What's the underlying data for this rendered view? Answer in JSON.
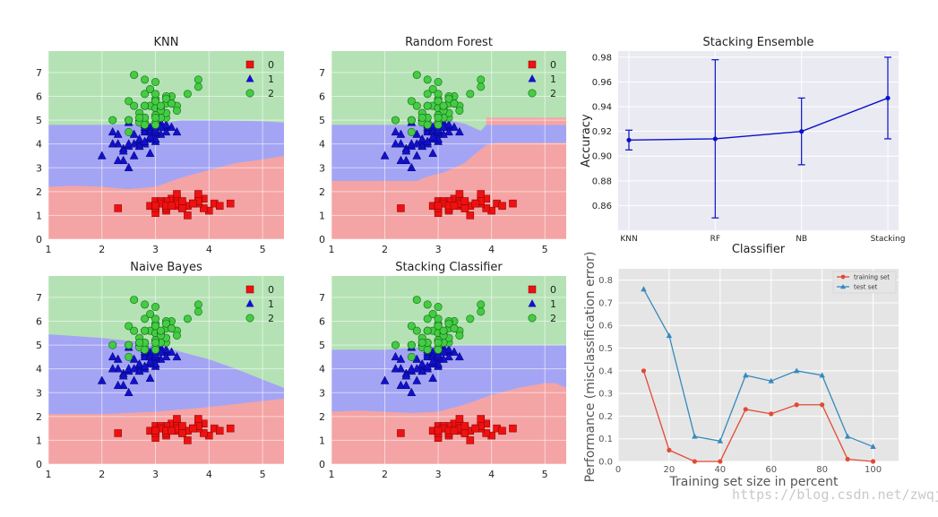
{
  "watermark": "https://blog.csdn.net/zwqjoy",
  "chart_data": [
    {
      "type": "scatter",
      "subtype": "decision-region",
      "title": "KNN",
      "xlim": [
        1,
        5.4
      ],
      "ylim": [
        0,
        7.9
      ],
      "xticks": [
        1,
        2,
        3,
        4,
        5
      ],
      "yticks": [
        0,
        1,
        2,
        3,
        4,
        5,
        6,
        7
      ],
      "boundaries": {
        "lower": [
          [
            1,
            2.2
          ],
          [
            1.5,
            2.25
          ],
          [
            2,
            2.2
          ],
          [
            2.5,
            2.1
          ],
          [
            3,
            2.2
          ],
          [
            3.5,
            2.6
          ],
          [
            4,
            2.9
          ],
          [
            4.5,
            3.2
          ],
          [
            5,
            3.35
          ],
          [
            5.4,
            3.5
          ]
        ],
        "upper": [
          [
            1,
            4.8
          ],
          [
            2,
            4.8
          ],
          [
            3,
            4.85
          ],
          [
            3.5,
            5.0
          ],
          [
            4,
            5.0
          ],
          [
            5,
            4.95
          ],
          [
            5.4,
            4.9
          ]
        ]
      },
      "legend": [
        "0",
        "1",
        "2"
      ],
      "legend_position": "top-right"
    },
    {
      "type": "scatter",
      "subtype": "decision-region",
      "title": "Random Forest",
      "xlim": [
        1,
        5.4
      ],
      "ylim": [
        0,
        7.9
      ],
      "xticks": [
        1,
        2,
        3,
        4,
        5
      ],
      "yticks": [
        0,
        1,
        2,
        3,
        4,
        5,
        6,
        7
      ],
      "boundaries": {
        "lower": [
          [
            1,
            2.45
          ],
          [
            2.6,
            2.45
          ],
          [
            2.7,
            2.55
          ],
          [
            2.9,
            2.7
          ],
          [
            3.1,
            2.8
          ],
          [
            3.3,
            3.0
          ],
          [
            3.5,
            3.2
          ],
          [
            3.7,
            3.6
          ],
          [
            3.9,
            3.95
          ],
          [
            4.1,
            4.05
          ],
          [
            5.4,
            4.05
          ]
        ],
        "upper": [
          [
            1,
            4.8
          ],
          [
            2.6,
            4.8
          ],
          [
            2.8,
            4.9
          ],
          [
            3.2,
            5.0
          ],
          [
            3.5,
            4.85
          ],
          [
            3.8,
            4.55
          ],
          [
            3.9,
            4.8
          ],
          [
            5.4,
            4.8
          ]
        ]
      },
      "notch": {
        "x0": 3.9,
        "x1": 5.4,
        "y0": 4.8,
        "y1": 5.1
      },
      "legend": [
        "0",
        "1",
        "2"
      ],
      "legend_position": "top-right"
    },
    {
      "type": "line",
      "title": "Stacking Ensemble",
      "xlabel": "Classifier",
      "ylabel": "Accuracy",
      "categories": [
        "KNN",
        "RF",
        "NB",
        "Stacking"
      ],
      "values": [
        0.913,
        0.914,
        0.92,
        0.947
      ],
      "errors": [
        0.008,
        0.064,
        0.027,
        0.033
      ],
      "ylim": [
        0.84,
        0.985
      ],
      "yticks": [
        0.86,
        0.88,
        0.9,
        0.92,
        0.94,
        0.96,
        0.98
      ],
      "color": "#0a10c8"
    },
    {
      "type": "scatter",
      "subtype": "decision-region",
      "title": "Naive Bayes",
      "xlim": [
        1,
        5.4
      ],
      "ylim": [
        0,
        7.9
      ],
      "xticks": [
        1,
        2,
        3,
        4,
        5
      ],
      "yticks": [
        0,
        1,
        2,
        3,
        4,
        5,
        6,
        7
      ],
      "boundaries": {
        "lower": [
          [
            1,
            2.1
          ],
          [
            2,
            2.1
          ],
          [
            3,
            2.2
          ],
          [
            4,
            2.4
          ],
          [
            5,
            2.65
          ],
          [
            5.4,
            2.75
          ]
        ],
        "upper": [
          [
            1,
            5.45
          ],
          [
            2,
            5.3
          ],
          [
            3,
            5.05
          ],
          [
            3.5,
            4.7
          ],
          [
            4,
            4.4
          ],
          [
            4.5,
            4.0
          ],
          [
            5,
            3.55
          ],
          [
            5.4,
            3.2
          ]
        ]
      },
      "legend": [
        "0",
        "1",
        "2"
      ],
      "legend_position": "top-right"
    },
    {
      "type": "scatter",
      "subtype": "decision-region",
      "title": "Stacking Classifier",
      "xlim": [
        1,
        5.4
      ],
      "ylim": [
        0,
        7.9
      ],
      "xticks": [
        1,
        2,
        3,
        4,
        5
      ],
      "yticks": [
        0,
        1,
        2,
        3,
        4,
        5,
        6,
        7
      ],
      "boundaries": {
        "lower": [
          [
            1,
            2.2
          ],
          [
            1.5,
            2.25
          ],
          [
            2,
            2.2
          ],
          [
            2.5,
            2.15
          ],
          [
            3,
            2.2
          ],
          [
            3.5,
            2.5
          ],
          [
            4,
            2.9
          ],
          [
            4.5,
            3.2
          ],
          [
            5,
            3.4
          ],
          [
            5.2,
            3.4
          ],
          [
            5.4,
            3.2
          ]
        ],
        "upper": [
          [
            1,
            4.8
          ],
          [
            2,
            4.8
          ],
          [
            3,
            4.95
          ],
          [
            3.5,
            5.0
          ],
          [
            4,
            5.0
          ],
          [
            5,
            5.0
          ],
          [
            5.4,
            5.0
          ]
        ]
      },
      "legend": [
        "0",
        "1",
        "2"
      ],
      "legend_position": "top-right"
    },
    {
      "type": "line",
      "xlabel": "Training set size in percent",
      "ylabel": "Performance (misclassification error)",
      "x": [
        10,
        20,
        30,
        40,
        50,
        60,
        70,
        80,
        90,
        100
      ],
      "series": [
        {
          "name": "training set",
          "values": [
            0.4,
            0.05,
            0.0,
            0.0,
            0.23,
            0.21,
            0.25,
            0.25,
            0.01,
            0.0
          ],
          "color": "#e24a33",
          "marker": "circle"
        },
        {
          "name": "test set",
          "values": [
            0.76,
            0.555,
            0.11,
            0.09,
            0.38,
            0.355,
            0.4,
            0.38,
            0.11,
            0.065
          ],
          "color": "#348abd",
          "marker": "triangle"
        }
      ],
      "xlim": [
        0,
        110
      ],
      "ylim": [
        0,
        0.85
      ],
      "xticks": [
        0,
        20,
        40,
        60,
        80,
        100
      ],
      "yticks": [
        0.0,
        0.1,
        0.2,
        0.3,
        0.4,
        0.5,
        0.6,
        0.7,
        0.8
      ],
      "legend_position": "top-right"
    }
  ],
  "iris_points": {
    "class0": [
      [
        3.5,
        1.4
      ],
      [
        3.0,
        1.4
      ],
      [
        3.2,
        1.3
      ],
      [
        3.1,
        1.5
      ],
      [
        3.6,
        1.4
      ],
      [
        3.9,
        1.7
      ],
      [
        3.4,
        1.4
      ],
      [
        3.4,
        1.5
      ],
      [
        2.9,
        1.4
      ],
      [
        3.1,
        1.5
      ],
      [
        3.7,
        1.5
      ],
      [
        3.4,
        1.6
      ],
      [
        3.0,
        1.4
      ],
      [
        3.0,
        1.1
      ],
      [
        4.0,
        1.2
      ],
      [
        4.4,
        1.5
      ],
      [
        3.9,
        1.3
      ],
      [
        3.5,
        1.4
      ],
      [
        3.8,
        1.7
      ],
      [
        3.8,
        1.5
      ],
      [
        3.4,
        1.7
      ],
      [
        3.7,
        1.5
      ],
      [
        3.6,
        1.0
      ],
      [
        3.3,
        1.7
      ],
      [
        3.4,
        1.9
      ],
      [
        3.0,
        1.6
      ],
      [
        3.4,
        1.6
      ],
      [
        3.5,
        1.5
      ],
      [
        3.4,
        1.4
      ],
      [
        3.2,
        1.6
      ],
      [
        3.1,
        1.6
      ],
      [
        3.4,
        1.5
      ],
      [
        4.1,
        1.5
      ],
      [
        4.2,
        1.4
      ],
      [
        3.1,
        1.5
      ],
      [
        3.2,
        1.2
      ],
      [
        3.5,
        1.3
      ],
      [
        3.6,
        1.4
      ],
      [
        3.0,
        1.3
      ],
      [
        3.4,
        1.5
      ],
      [
        3.5,
        1.3
      ],
      [
        2.3,
        1.3
      ],
      [
        3.2,
        1.3
      ],
      [
        3.5,
        1.6
      ],
      [
        3.8,
        1.9
      ],
      [
        3.0,
        1.4
      ],
      [
        3.8,
        1.6
      ],
      [
        3.2,
        1.4
      ],
      [
        3.7,
        1.5
      ],
      [
        3.3,
        1.4
      ]
    ],
    "class1": [
      [
        3.2,
        4.7
      ],
      [
        3.2,
        4.5
      ],
      [
        3.1,
        4.9
      ],
      [
        2.3,
        4.0
      ],
      [
        2.8,
        4.6
      ],
      [
        2.8,
        4.5
      ],
      [
        3.3,
        4.7
      ],
      [
        2.4,
        3.3
      ],
      [
        2.9,
        4.6
      ],
      [
        2.7,
        3.9
      ],
      [
        2.0,
        3.5
      ],
      [
        3.0,
        4.2
      ],
      [
        2.2,
        4.0
      ],
      [
        2.9,
        4.7
      ],
      [
        2.9,
        3.6
      ],
      [
        3.1,
        4.4
      ],
      [
        3.0,
        4.5
      ],
      [
        2.7,
        4.1
      ],
      [
        2.2,
        4.5
      ],
      [
        2.5,
        3.9
      ],
      [
        3.2,
        4.8
      ],
      [
        2.8,
        4.0
      ],
      [
        2.5,
        4.9
      ],
      [
        2.8,
        4.7
      ],
      [
        2.9,
        4.3
      ],
      [
        3.0,
        4.4
      ],
      [
        2.8,
        4.8
      ],
      [
        3.0,
        5.0
      ],
      [
        2.9,
        4.5
      ],
      [
        2.6,
        3.5
      ],
      [
        2.4,
        3.8
      ],
      [
        2.4,
        3.7
      ],
      [
        2.7,
        3.9
      ],
      [
        2.7,
        5.1
      ],
      [
        3.0,
        4.5
      ],
      [
        3.4,
        4.5
      ],
      [
        3.1,
        4.7
      ],
      [
        2.3,
        4.4
      ],
      [
        3.0,
        4.1
      ],
      [
        2.5,
        4.0
      ],
      [
        2.6,
        4.4
      ],
      [
        3.0,
        4.6
      ],
      [
        2.6,
        4.0
      ],
      [
        2.3,
        3.3
      ],
      [
        2.7,
        4.2
      ],
      [
        3.0,
        4.2
      ],
      [
        2.9,
        4.2
      ],
      [
        2.9,
        4.3
      ],
      [
        2.5,
        3.0
      ],
      [
        2.8,
        4.1
      ]
    ],
    "class2": [
      [
        3.3,
        6.0
      ],
      [
        2.7,
        5.1
      ],
      [
        3.0,
        5.9
      ],
      [
        2.9,
        5.6
      ],
      [
        3.0,
        5.8
      ],
      [
        3.0,
        6.6
      ],
      [
        2.5,
        4.5
      ],
      [
        2.9,
        6.3
      ],
      [
        2.5,
        5.8
      ],
      [
        3.6,
        6.1
      ],
      [
        3.2,
        5.1
      ],
      [
        2.7,
        5.3
      ],
      [
        3.0,
        5.5
      ],
      [
        2.5,
        5.0
      ],
      [
        2.8,
        5.1
      ],
      [
        3.2,
        5.3
      ],
      [
        3.0,
        5.5
      ],
      [
        3.8,
        6.7
      ],
      [
        2.6,
        6.9
      ],
      [
        2.2,
        5.0
      ],
      [
        3.2,
        5.7
      ],
      [
        2.8,
        4.9
      ],
      [
        2.8,
        6.7
      ],
      [
        2.7,
        4.9
      ],
      [
        3.3,
        5.7
      ],
      [
        3.2,
        6.0
      ],
      [
        2.8,
        4.8
      ],
      [
        3.0,
        4.9
      ],
      [
        2.8,
        5.6
      ],
      [
        3.0,
        5.8
      ],
      [
        2.8,
        6.1
      ],
      [
        3.8,
        6.4
      ],
      [
        2.8,
        5.6
      ],
      [
        2.8,
        5.1
      ],
      [
        2.6,
        5.6
      ],
      [
        3.0,
        6.1
      ],
      [
        3.4,
        5.6
      ],
      [
        3.1,
        5.5
      ],
      [
        3.0,
        4.8
      ],
      [
        3.1,
        5.4
      ],
      [
        3.1,
        5.6
      ],
      [
        3.1,
        5.1
      ],
      [
        2.7,
        5.1
      ],
      [
        3.2,
        5.9
      ],
      [
        3.3,
        5.7
      ],
      [
        3.0,
        5.2
      ],
      [
        2.5,
        5.0
      ],
      [
        3.0,
        5.2
      ],
      [
        3.4,
        5.4
      ],
      [
        3.0,
        5.1
      ]
    ]
  }
}
